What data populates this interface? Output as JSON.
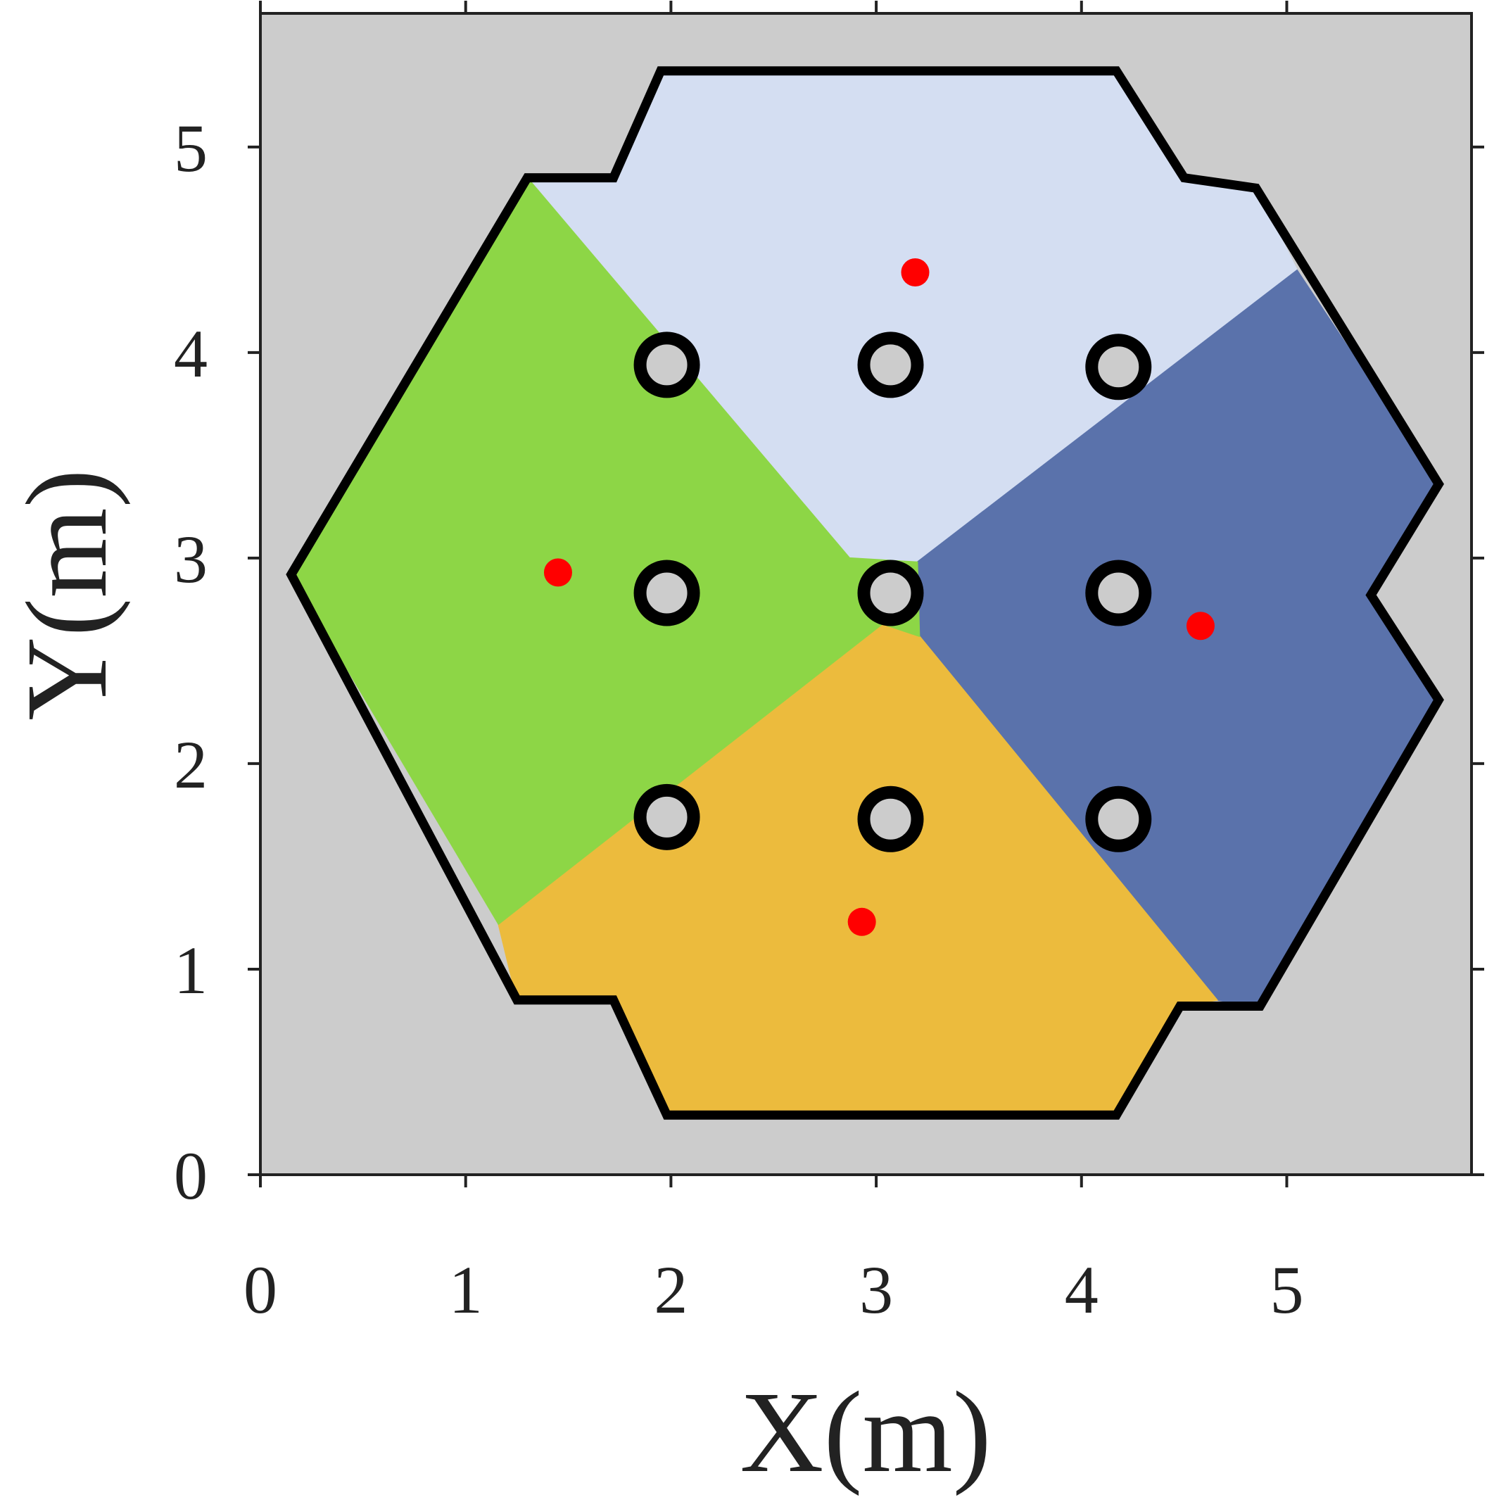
{
  "chart_data": {
    "type": "scatter",
    "xlabel": "X(m)",
    "ylabel": "Y(m)",
    "xlim": [
      0,
      5.9
    ],
    "ylim": [
      0,
      5.65
    ],
    "xticks": [
      0,
      1,
      2,
      3,
      4,
      5
    ],
    "yticks": [
      0,
      1,
      2,
      3,
      4,
      5
    ],
    "background": "#cccccc",
    "regions": [
      {
        "color": "#d4def2",
        "x": [
          1.3,
          1.72,
          1.95,
          4.17,
          4.5,
          4.85,
          5.05,
          3.2,
          2.87
        ],
        "y": [
          4.85,
          4.85,
          5.37,
          5.37,
          4.85,
          4.8,
          4.4,
          2.98,
          3.0
        ]
      },
      {
        "color": "#5a72ab",
        "x": [
          5.05,
          5.74,
          5.41,
          5.74,
          4.87,
          4.66,
          3.21,
          3.2
        ],
        "y": [
          4.4,
          3.36,
          2.82,
          2.31,
          0.82,
          0.85,
          2.62,
          2.98
        ]
      },
      {
        "color": "#ecbb3d",
        "x": [
          3.21,
          4.66,
          4.48,
          4.17,
          1.98,
          1.72,
          1.25,
          1.16,
          3.03
        ],
        "y": [
          2.62,
          0.85,
          0.82,
          0.29,
          0.29,
          0.85,
          0.85,
          1.22,
          2.68
        ]
      },
      {
        "color": "#8dd646",
        "x": [
          1.16,
          0.15,
          1.3,
          2.87,
          3.2,
          3.21,
          3.03
        ],
        "y": [
          1.22,
          2.92,
          4.85,
          3.0,
          2.98,
          2.62,
          2.68
        ]
      }
    ],
    "boundary": {
      "color": "#000000",
      "x": [
        1.95,
        1.72,
        1.3,
        0.15,
        1.25,
        1.72,
        1.98,
        4.17,
        4.48,
        4.87,
        5.74,
        5.41,
        5.74,
        4.85,
        4.5,
        4.17
      ],
      "y": [
        5.37,
        4.85,
        4.85,
        2.92,
        0.85,
        0.85,
        0.29,
        0.29,
        0.82,
        0.82,
        2.31,
        2.82,
        3.36,
        4.8,
        4.85,
        5.37
      ]
    },
    "obstacles": {
      "x": [
        1.98,
        3.07,
        4.18,
        1.98,
        3.07,
        4.18,
        1.98,
        3.07,
        4.18
      ],
      "y": [
        3.94,
        3.94,
        3.93,
        2.83,
        2.83,
        2.83,
        1.74,
        1.73,
        1.73
      ]
    },
    "series": [
      {
        "color": "#ff0000",
        "x": [
          1.45,
          3.19,
          4.58,
          2.93
        ],
        "y": [
          2.93,
          4.39,
          2.67,
          1.23
        ]
      }
    ]
  }
}
